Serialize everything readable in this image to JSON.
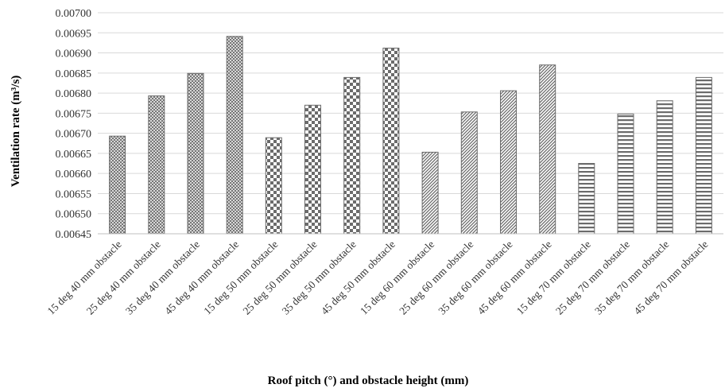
{
  "chart_data": {
    "type": "bar",
    "title": "",
    "xlabel": "Roof pitch (°) and obstacle height (mm)",
    "ylabel": "Ventilation rate (m³/s)",
    "ylim": [
      0.00645,
      0.007
    ],
    "ytick_step": 5e-05,
    "ytick_labels": [
      "0.00645",
      "0.00650",
      "0.00655",
      "0.00660",
      "0.00665",
      "0.00670",
      "0.00675",
      "0.00680",
      "0.00685",
      "0.00690",
      "0.00695",
      "0.00700"
    ],
    "grid": true,
    "legend": "none",
    "categories": [
      "15 deg 40 mm obstacle",
      "25 deg 40 mm obstacle",
      "35 deg 40 mm obstacle",
      "45 deg 40 mm obstacle",
      "15 deg 50 mm obstacle",
      "25 deg 50 mm obstacle",
      "35 deg 50 mm obstacle",
      "45 deg 50 mm obstacle",
      "15 deg 60 mm obstacle",
      "25 deg 60 mm obstacle",
      "35 deg 60 mm obstacle",
      "45 deg 60 mm obstacle",
      "15 deg 70 mm obstacle",
      "25 deg 70 mm obstacle",
      "35 deg 70 mm obstacle",
      "45 deg 70 mm obstacle"
    ],
    "values": [
      0.006693,
      0.006793,
      0.006849,
      0.006941,
      0.006689,
      0.00677,
      0.006839,
      0.006912,
      0.006653,
      0.006753,
      0.006806,
      0.00687,
      0.006625,
      0.006748,
      0.006781,
      0.006839
    ],
    "patterns": [
      "crosshatch",
      "crosshatch",
      "crosshatch",
      "crosshatch",
      "checker",
      "checker",
      "checker",
      "checker",
      "diagonal",
      "diagonal",
      "diagonal",
      "diagonal",
      "horizontal",
      "horizontal",
      "horizontal",
      "horizontal"
    ],
    "colors": {
      "bar_stroke": "#6b6b6b",
      "pattern": "#6b6b6b",
      "grid": "#d9d9d9",
      "axis": "#bfbfbf"
    }
  }
}
